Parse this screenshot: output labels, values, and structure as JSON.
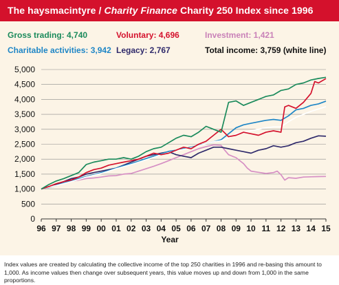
{
  "title": {
    "part1": "The haysmacintyre / ",
    "part2": "Charity Finance",
    "part3": " Charity 250 Index since 1996"
  },
  "legend": [
    {
      "key": "gross_trading",
      "text": "Gross trading: 4,740"
    },
    {
      "key": "voluntary",
      "text": "Voluntary: 4,696"
    },
    {
      "key": "investment",
      "text": "Investment: 1,421"
    },
    {
      "key": "charitable_activities",
      "text": "Charitable activities: 3,942"
    },
    {
      "key": "legacy",
      "text": "Legacy: 2,767"
    },
    {
      "key": "total_income",
      "text": "Total income: 3,759 (white line)"
    }
  ],
  "footnote": "Index values are created by calculating the collective income of the top 250 charities in 1996 and re-basing this amount to 1,000. As income values then change over subsequent years, this value moves up and down from 1,000 in the same proportions.",
  "chart_data": {
    "type": "line",
    "xlabel": "Year",
    "ylabel": "",
    "x_ticks": [
      "96",
      "97",
      "98",
      "99",
      "00",
      "01",
      "02",
      "03",
      "04",
      "05",
      "06",
      "07",
      "08",
      "09",
      "10",
      "11",
      "12",
      "13",
      "14",
      "15"
    ],
    "xlim": [
      1996,
      2015
    ],
    "y_ticks": [
      "0",
      "500",
      "1,000",
      "1,500",
      "2,000",
      "2,500",
      "3,000",
      "3,500",
      "4,000",
      "4,500",
      "5,000"
    ],
    "ylim": [
      0,
      5000
    ],
    "grid": "horizontal",
    "background": "#fcf4e6",
    "series": [
      {
        "name": "Investment",
        "key": "investment",
        "color": "#d68fc4",
        "x": [
          1996,
          1996.5,
          1997,
          1997.5,
          1998,
          1998.5,
          1999,
          1999.5,
          2000,
          2000.5,
          2001,
          2001.5,
          2002,
          2002.5,
          2003,
          2003.5,
          2004,
          2004.5,
          2005,
          2005.5,
          2006,
          2006.5,
          2007,
          2007.5,
          2008,
          2008.25,
          2008.5,
          2008.75,
          2009,
          2009.25,
          2009.5,
          2009.75,
          2010,
          2010.5,
          2011,
          2011.5,
          2011.75,
          2012,
          2012.25,
          2012.5,
          2013,
          2013.5,
          2014,
          2014.5,
          2015
        ],
        "y": [
          1000,
          1080,
          1150,
          1200,
          1260,
          1300,
          1350,
          1370,
          1400,
          1440,
          1450,
          1500,
          1520,
          1600,
          1680,
          1760,
          1850,
          1950,
          2050,
          2150,
          2250,
          2350,
          2420,
          2480,
          2460,
          2300,
          2150,
          2100,
          2050,
          1950,
          1850,
          1700,
          1600,
          1560,
          1520,
          1550,
          1600,
          1480,
          1300,
          1380,
          1360,
          1400,
          1410,
          1418,
          1421
        ]
      },
      {
        "name": "Legacy",
        "key": "legacy",
        "color": "#2f2a6b",
        "x": [
          1996,
          1996.5,
          1997,
          1997.5,
          1998,
          1998.5,
          1999,
          1999.5,
          2000,
          2000.5,
          2001,
          2001.5,
          2002,
          2002.5,
          2003,
          2003.5,
          2004,
          2004.5,
          2005,
          2005.5,
          2006,
          2006.5,
          2007,
          2007.5,
          2008,
          2008.5,
          2009,
          2009.5,
          2010,
          2010.5,
          2011,
          2011.5,
          2012,
          2012.5,
          2013,
          2013.5,
          2014,
          2014.5,
          2015
        ],
        "y": [
          1000,
          1080,
          1150,
          1250,
          1350,
          1400,
          1500,
          1550,
          1600,
          1650,
          1700,
          1800,
          1900,
          2000,
          2100,
          2150,
          2200,
          2250,
          2150,
          2100,
          2050,
          2200,
          2300,
          2400,
          2400,
          2350,
          2300,
          2250,
          2200,
          2300,
          2350,
          2450,
          2400,
          2450,
          2550,
          2600,
          2700,
          2780,
          2767
        ]
      },
      {
        "name": "Charitable activities",
        "key": "charitable_activities",
        "color": "#1e86c6",
        "x": [
          1996,
          1996.5,
          1997,
          1997.5,
          1998,
          1998.5,
          1999,
          1999.5,
          2000,
          2000.5,
          2001,
          2001.5,
          2002,
          2002.5,
          2003,
          2003.5,
          2004,
          2004.5,
          2005,
          2005.5,
          2006,
          2006.5,
          2007,
          2007.5,
          2008,
          2008.5,
          2009,
          2009.5,
          2010,
          2010.5,
          2011,
          2011.5,
          2012,
          2012.5,
          2013,
          2013.5,
          2014,
          2014.5,
          2015
        ],
        "y": [
          1000,
          1050,
          1120,
          1200,
          1280,
          1350,
          1420,
          1480,
          1550,
          1620,
          1700,
          1780,
          1850,
          1930,
          2020,
          2100,
          2180,
          2260,
          2300,
          2350,
          2400,
          2460,
          2520,
          2580,
          2650,
          2850,
          3050,
          3150,
          3200,
          3250,
          3300,
          3330,
          3300,
          3450,
          3650,
          3700,
          3800,
          3850,
          3942
        ]
      },
      {
        "name": "Total income",
        "key": "total_income",
        "color": "#ffffff",
        "x": [
          1996,
          1996.5,
          1997,
          1997.5,
          1998,
          1998.5,
          1999,
          1999.5,
          2000,
          2000.5,
          2001,
          2001.5,
          2002,
          2002.5,
          2003,
          2003.5,
          2004,
          2004.5,
          2005,
          2005.5,
          2006,
          2006.5,
          2007,
          2007.5,
          2008,
          2008.5,
          2009,
          2009.5,
          2010,
          2010.5,
          2011,
          2011.5,
          2012,
          2012.5,
          2013,
          2013.5,
          2014,
          2014.5,
          2015
        ],
        "y": [
          1000,
          1060,
          1120,
          1180,
          1250,
          1320,
          1400,
          1460,
          1520,
          1600,
          1680,
          1750,
          1820,
          1900,
          1980,
          2060,
          2150,
          2220,
          2280,
          2330,
          2380,
          2450,
          2520,
          2580,
          2620,
          2700,
          2850,
          2900,
          2950,
          3000,
          3050,
          3080,
          3080,
          3250,
          3400,
          3500,
          3600,
          3680,
          3759
        ]
      },
      {
        "name": "Voluntary",
        "key": "voluntary",
        "color": "#d4112c",
        "x": [
          1996,
          1996.5,
          1997,
          1997.5,
          1998,
          1998.5,
          1999,
          1999.5,
          2000,
          2000.5,
          2001,
          2001.5,
          2002,
          2002.5,
          2003,
          2003.5,
          2004,
          2004.5,
          2005,
          2005.5,
          2006,
          2006.5,
          2007,
          2007.5,
          2008,
          2008.5,
          2009,
          2009.5,
          2010,
          2010.5,
          2011,
          2011.5,
          2012,
          2012.25,
          2012.5,
          2013,
          2013.5,
          2014,
          2014.25,
          2014.5,
          2015
        ],
        "y": [
          1000,
          1080,
          1180,
          1250,
          1300,
          1400,
          1550,
          1650,
          1700,
          1800,
          1850,
          1900,
          1950,
          2000,
          2100,
          2200,
          2150,
          2200,
          2300,
          2400,
          2350,
          2500,
          2600,
          2800,
          3000,
          2750,
          2800,
          2900,
          2850,
          2800,
          2900,
          2950,
          2900,
          3750,
          3800,
          3700,
          3900,
          4200,
          4600,
          4550,
          4696
        ]
      },
      {
        "name": "Gross trading",
        "key": "gross_trading",
        "color": "#1a8a5b",
        "x": [
          1996,
          1996.5,
          1997,
          1997.5,
          1998,
          1998.5,
          1999,
          1999.5,
          2000,
          2000.5,
          2001,
          2001.5,
          2002,
          2002.5,
          2003,
          2003.5,
          2004,
          2004.5,
          2005,
          2005.5,
          2006,
          2006.5,
          2007,
          2007.5,
          2008,
          2008.5,
          2009,
          2009.5,
          2010,
          2010.5,
          2011,
          2011.5,
          2012,
          2012.5,
          2013,
          2013.5,
          2014,
          2014.5,
          2015
        ],
        "y": [
          1000,
          1150,
          1270,
          1350,
          1450,
          1550,
          1820,
          1900,
          1950,
          2000,
          2000,
          2050,
          2000,
          2100,
          2250,
          2350,
          2400,
          2550,
          2700,
          2800,
          2750,
          2900,
          3100,
          3000,
          2900,
          3900,
          3950,
          3800,
          3900,
          4000,
          4100,
          4150,
          4300,
          4350,
          4500,
          4550,
          4650,
          4700,
          4740
        ]
      }
    ]
  }
}
